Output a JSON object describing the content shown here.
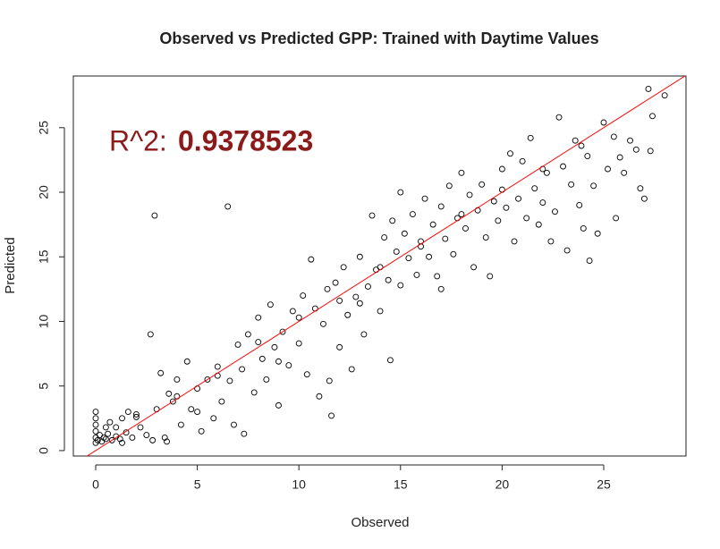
{
  "chart_data": {
    "type": "scatter",
    "title": "Observed vs Predicted GPP: Trained with Daytime Values",
    "x_label": "Observed",
    "y_label": "Predicted",
    "annotation": {
      "label": "R^2:",
      "value": 0.9378523,
      "color": "#8b1a1a"
    },
    "abline": {
      "a": 0,
      "b": 1,
      "color": "#ff0000"
    },
    "point_color": "#000000",
    "xlim": [
      -1.1,
      29.05
    ],
    "ylim": [
      -0.42,
      29.0
    ],
    "xticks": [
      0,
      5,
      10,
      15,
      20,
      25
    ],
    "yticks": [
      0,
      5,
      10,
      15,
      20,
      25
    ],
    "series": [
      {
        "name": "GPP",
        "x": [
          0,
          0,
          0,
          0,
          0,
          0,
          0.1,
          0.2,
          0.3,
          0.4,
          0.5,
          0.6,
          0.7,
          0.8,
          1,
          1.2,
          1.3,
          1.5,
          1.6,
          1.8,
          2,
          2.2,
          2.5,
          2.7,
          2.9,
          2.8,
          3,
          3.2,
          3.4,
          3.6,
          3.8,
          4,
          4.2,
          4.5,
          4.7,
          5,
          5.2,
          5.5,
          5.8,
          6,
          6.2,
          6.5,
          6.6,
          6.8,
          7,
          7.2,
          7.3,
          7.5,
          7.8,
          8,
          8.2,
          8.4,
          8.6,
          8.8,
          9,
          9.2,
          9.5,
          9.7,
          10,
          10.2,
          10.4,
          10.6,
          10.8,
          11,
          11.2,
          11.4,
          11.6,
          11.8,
          12,
          12.2,
          12.4,
          12.6,
          12.8,
          13,
          13.2,
          13.4,
          13.6,
          13.8,
          14,
          14.2,
          14.4,
          14.5,
          14.6,
          14.8,
          15,
          15,
          15.2,
          15.4,
          15.6,
          15.8,
          16,
          16.2,
          16.4,
          16.6,
          16.8,
          17,
          17.2,
          17.4,
          17.6,
          17.8,
          18,
          18.2,
          18.4,
          18.6,
          18.8,
          19,
          19.2,
          19.4,
          19.6,
          19.8,
          20,
          20.2,
          20.4,
          20.6,
          20.8,
          21,
          21.2,
          21.4,
          21.6,
          21.8,
          22,
          22.2,
          22.4,
          22.6,
          22.8,
          23,
          23.2,
          23.4,
          23.6,
          23.8,
          24,
          24.2,
          24.3,
          24.5,
          24.7,
          25,
          25.2,
          25.5,
          25.8,
          26,
          26.3,
          26.6,
          27,
          27.2,
          27.4,
          28,
          26.8,
          27.3,
          25.6,
          23.9,
          1,
          2,
          4,
          6,
          8,
          10,
          12,
          14,
          16,
          18,
          20,
          22,
          0.5,
          1.3,
          3.5,
          5,
          9,
          11.5,
          13,
          17
        ],
        "values": [
          0.6,
          1,
          1.5,
          2,
          2.5,
          3,
          0.8,
          1.2,
          0.7,
          1.0,
          0.9,
          1.3,
          2.2,
          0.8,
          1.1,
          0.9,
          2.5,
          1.4,
          3,
          1,
          2.6,
          1.8,
          1.2,
          9,
          18.2,
          0.8,
          3.2,
          6,
          1,
          4.4,
          3.8,
          5.5,
          2,
          6.9,
          3.2,
          4.8,
          1.5,
          5.5,
          2.5,
          6.5,
          3.8,
          18.9,
          5.4,
          2,
          8.2,
          6.3,
          1.3,
          9,
          4.5,
          10.3,
          7.1,
          5.5,
          11.3,
          8,
          3.5,
          9.2,
          6.6,
          10.8,
          8.3,
          12,
          5.9,
          14.8,
          11,
          4.2,
          9.8,
          12.5,
          2.7,
          13,
          8,
          14.2,
          10.5,
          6.3,
          11.9,
          15,
          9,
          12.7,
          18.2,
          14,
          10.8,
          16.5,
          13.2,
          7,
          17.8,
          15.4,
          20,
          12.8,
          16.8,
          14.9,
          18.3,
          13.6,
          16.2,
          19.5,
          15,
          17.5,
          13.5,
          18.9,
          16.4,
          20.5,
          15.2,
          18,
          21.5,
          17.2,
          19.8,
          14.2,
          18.6,
          20.6,
          16.5,
          13.5,
          19.3,
          17.8,
          21.8,
          18.8,
          23,
          16.2,
          19.5,
          22.4,
          18,
          24.2,
          20.3,
          17.5,
          19.2,
          21.5,
          16.2,
          18.5,
          25.8,
          22,
          15.5,
          20.6,
          24,
          19,
          17.2,
          22.8,
          14.7,
          20.5,
          16.8,
          25.4,
          21.8,
          24.3,
          22.7,
          21.5,
          24,
          23.3,
          19.5,
          28,
          25.9,
          27.5,
          20.3,
          23.2,
          18,
          23.6,
          1.8,
          2.8,
          4.2,
          5.8,
          8.4,
          10.3,
          11.6,
          14.2,
          15.8,
          18.3,
          20.2,
          21.8,
          1.8,
          0.6,
          0.7,
          3,
          6.9,
          5.4,
          11.4,
          12.5
        ]
      }
    ]
  }
}
